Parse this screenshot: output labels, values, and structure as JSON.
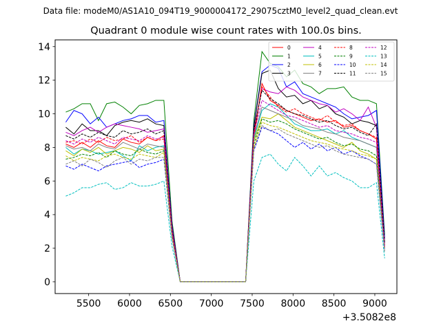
{
  "header": {
    "data_file": "Data file: modeM0/AS1A10_094T19_9000004172_29075cztM0_level2_quad_clean.evt"
  },
  "chart_data": {
    "type": "line",
    "title": "Quadrant 0 module wise count rates with 100.0s bins.",
    "xlabel": "",
    "ylabel": "",
    "x_offset_label": "+3.5082e8",
    "xlim": [
      5090,
      9270
    ],
    "ylim": [
      -0.7,
      14.4
    ],
    "x_ticks": [
      5500,
      6000,
      6500,
      7000,
      7500,
      8000,
      8500,
      9000
    ],
    "y_ticks": [
      0,
      2,
      4,
      6,
      8,
      10,
      12,
      14
    ],
    "x": [
      5220,
      5320,
      5420,
      5520,
      5620,
      5720,
      5820,
      5920,
      6020,
      6120,
      6220,
      6320,
      6420,
      6520,
      6620,
      6720,
      6820,
      6920,
      7020,
      7120,
      7220,
      7320,
      7420,
      7520,
      7620,
      7720,
      7820,
      7920,
      8020,
      8120,
      8220,
      8320,
      8420,
      8520,
      8620,
      8720,
      8820,
      8920,
      9020,
      9120
    ],
    "legend_location": "upper right",
    "series": [
      {
        "name": "0",
        "color": "#ff0000",
        "dash": "solid",
        "values": [
          8.2,
          8.0,
          8.3,
          8.0,
          8.4,
          8.1,
          8.0,
          8.5,
          8.3,
          8.2,
          8.6,
          8.4,
          8.7,
          3.0,
          0,
          0,
          0,
          0,
          0,
          0,
          0,
          0,
          0,
          8.5,
          11.8,
          10.8,
          10.5,
          10.2,
          10.0,
          9.8,
          9.6,
          9.7,
          9.5,
          9.6,
          9.2,
          9.3,
          9.0,
          8.8,
          8.5,
          2.0
        ]
      },
      {
        "name": "1",
        "color": "#008000",
        "dash": "solid",
        "values": [
          10.1,
          10.3,
          10.6,
          10.6,
          9.6,
          10.6,
          10.7,
          10.4,
          10.0,
          10.5,
          10.6,
          10.8,
          10.8,
          3.6,
          0,
          0,
          0,
          0,
          0,
          0,
          0,
          0,
          0,
          9.6,
          13.7,
          13.0,
          12.8,
          12.2,
          12.6,
          11.8,
          11.6,
          11.2,
          11.5,
          11.5,
          11.6,
          11.0,
          10.8,
          10.8,
          10.6,
          2.8
        ]
      },
      {
        "name": "2",
        "color": "#0000ff",
        "dash": "solid",
        "values": [
          9.5,
          10.2,
          10.0,
          9.4,
          9.8,
          9.2,
          9.4,
          9.6,
          9.7,
          9.9,
          9.9,
          9.5,
          9.6,
          3.4,
          0,
          0,
          0,
          0,
          0,
          0,
          0,
          0,
          0,
          9.3,
          12.5,
          12.9,
          12.7,
          11.6,
          11.9,
          11.2,
          11.0,
          10.8,
          10.6,
          10.4,
          10.0,
          9.7,
          9.8,
          9.9,
          10.2,
          2.6
        ]
      },
      {
        "name": "3",
        "color": "#000000",
        "dash": "solid",
        "values": [
          9.2,
          8.8,
          9.4,
          9.0,
          9.0,
          8.7,
          9.3,
          9.5,
          9.6,
          9.5,
          9.7,
          9.4,
          9.3,
          3.3,
          0,
          0,
          0,
          0,
          0,
          0,
          0,
          0,
          0,
          9.2,
          12.4,
          12.6,
          11.5,
          11.0,
          11.1,
          10.6,
          10.8,
          10.3,
          10.5,
          10.0,
          9.8,
          9.4,
          9.6,
          9.5,
          9.3,
          2.4
        ]
      },
      {
        "name": "4",
        "color": "#bf00bf",
        "dash": "solid",
        "values": [
          8.9,
          8.7,
          9.0,
          9.2,
          8.9,
          9.2,
          9.4,
          9.3,
          9.2,
          9.1,
          8.9,
          9.0,
          9.1,
          3.2,
          0,
          0,
          0,
          0,
          0,
          0,
          0,
          0,
          0,
          9.0,
          11.5,
          11.3,
          11.2,
          11.6,
          11.4,
          11.0,
          10.8,
          10.6,
          10.5,
          10.1,
          10.3,
          10.0,
          9.6,
          10.4,
          9.2,
          2.3
        ]
      },
      {
        "name": "5",
        "color": "#00bfbf",
        "dash": "solid",
        "values": [
          8.0,
          7.6,
          7.9,
          7.8,
          7.6,
          7.7,
          7.8,
          7.5,
          7.2,
          8.1,
          7.8,
          8.0,
          8.1,
          2.9,
          0,
          0,
          0,
          0,
          0,
          0,
          0,
          0,
          0,
          8.5,
          10.2,
          10.6,
          10.4,
          9.9,
          9.4,
          9.2,
          9.0,
          9.0,
          9.1,
          8.8,
          9.0,
          8.6,
          8.4,
          8.2,
          8.0,
          2.2
        ]
      },
      {
        "name": "6",
        "color": "#bfbf00",
        "dash": "solid",
        "values": [
          7.8,
          7.5,
          7.9,
          7.7,
          8.0,
          7.6,
          7.8,
          8.0,
          7.9,
          7.7,
          8.1,
          7.8,
          7.9,
          2.8,
          0,
          0,
          0,
          0,
          0,
          0,
          0,
          0,
          0,
          8.4,
          9.8,
          9.7,
          10.0,
          9.6,
          9.2,
          9.0,
          8.8,
          8.6,
          8.4,
          8.2,
          8.0,
          8.3,
          7.8,
          7.6,
          7.3,
          2.1
        ]
      },
      {
        "name": "7",
        "color": "#808080",
        "dash": "solid",
        "values": [
          8.1,
          7.9,
          8.0,
          7.8,
          8.2,
          8.0,
          7.9,
          8.3,
          8.1,
          7.9,
          8.2,
          8.1,
          8.0,
          2.9,
          0,
          0,
          0,
          0,
          0,
          0,
          0,
          0,
          0,
          8.6,
          10.4,
          10.2,
          10.0,
          9.8,
          9.6,
          9.3,
          9.2,
          9.1,
          8.9,
          8.8,
          8.6,
          8.5,
          8.4,
          8.2,
          8.0,
          2.2
        ]
      },
      {
        "name": "8",
        "color": "#ff0000",
        "dash": "dashed",
        "values": [
          8.3,
          8.4,
          8.2,
          8.5,
          8.3,
          8.6,
          8.4,
          8.5,
          8.7,
          8.3,
          8.6,
          8.4,
          8.5,
          3.0,
          0,
          0,
          0,
          0,
          0,
          0,
          0,
          0,
          0,
          8.8,
          11.6,
          11.0,
          10.4,
          10.1,
          10.3,
          10.0,
          9.8,
          9.6,
          9.9,
          9.5,
          9.3,
          9.4,
          9.0,
          8.8,
          8.6,
          2.1
        ]
      },
      {
        "name": "9",
        "color": "#008000",
        "dash": "dashed",
        "values": [
          7.3,
          7.4,
          7.6,
          7.5,
          7.7,
          7.4,
          7.8,
          7.6,
          7.5,
          7.9,
          7.7,
          7.6,
          7.8,
          2.7,
          0,
          0,
          0,
          0,
          0,
          0,
          0,
          0,
          0,
          8.2,
          9.7,
          9.5,
          9.6,
          9.4,
          9.1,
          8.9,
          8.7,
          8.5,
          8.6,
          8.3,
          8.1,
          8.2,
          7.9,
          7.8,
          7.5,
          2.0
        ]
      },
      {
        "name": "10",
        "color": "#0000ff",
        "dash": "dashed",
        "values": [
          6.9,
          6.7,
          7.0,
          6.8,
          6.6,
          6.9,
          7.0,
          7.1,
          7.2,
          6.8,
          7.0,
          7.1,
          7.3,
          2.6,
          0,
          0,
          0,
          0,
          0,
          0,
          0,
          0,
          0,
          7.8,
          9.2,
          9.0,
          8.8,
          8.4,
          8.0,
          8.3,
          7.9,
          8.2,
          7.8,
          8.0,
          7.6,
          7.8,
          7.5,
          7.3,
          7.0,
          1.9
        ]
      },
      {
        "name": "11",
        "color": "#000000",
        "dash": "dashed",
        "values": [
          8.7,
          8.5,
          8.8,
          8.6,
          8.9,
          8.7,
          8.6,
          9.0,
          8.8,
          8.9,
          9.1,
          8.8,
          9.0,
          3.1,
          0,
          0,
          0,
          0,
          0,
          0,
          0,
          0,
          0,
          9.0,
          11.4,
          10.9,
          10.6,
          10.2,
          10.0,
          9.9,
          9.7,
          9.5,
          9.6,
          9.3,
          9.1,
          9.2,
          8.9,
          8.7,
          9.4,
          2.3
        ]
      },
      {
        "name": "12",
        "color": "#bf00bf",
        "dash": "dashed",
        "values": [
          8.4,
          8.2,
          8.5,
          8.3,
          8.6,
          8.4,
          8.2,
          8.6,
          8.5,
          8.4,
          8.7,
          8.5,
          8.6,
          3.0,
          0,
          0,
          0,
          0,
          0,
          0,
          0,
          0,
          0,
          8.8,
          10.8,
          10.5,
          10.2,
          9.9,
          9.8,
          9.6,
          9.4,
          9.2,
          9.3,
          9.0,
          8.9,
          8.8,
          8.6,
          8.5,
          8.3,
          2.1
        ]
      },
      {
        "name": "13",
        "color": "#00bfbf",
        "dash": "dashed",
        "values": [
          5.1,
          5.3,
          5.6,
          5.6,
          5.8,
          5.9,
          5.5,
          5.6,
          5.9,
          5.7,
          5.7,
          5.8,
          6.0,
          2.1,
          0,
          0,
          0,
          0,
          0,
          0,
          0,
          0,
          0,
          6.0,
          7.4,
          7.6,
          7.0,
          6.6,
          7.4,
          6.9,
          6.3,
          6.9,
          6.3,
          6.5,
          6.2,
          6.0,
          5.6,
          5.6,
          5.9,
          1.4
        ]
      },
      {
        "name": "14",
        "color": "#bfbf00",
        "dash": "dashed",
        "values": [
          7.5,
          7.2,
          7.4,
          7.3,
          7.2,
          7.5,
          7.6,
          7.4,
          7.3,
          7.6,
          7.5,
          7.4,
          7.7,
          2.7,
          0,
          0,
          0,
          0,
          0,
          0,
          0,
          0,
          0,
          8.0,
          9.5,
          9.3,
          9.2,
          9.0,
          8.8,
          8.6,
          8.4,
          8.3,
          8.2,
          8.0,
          7.9,
          7.8,
          7.6,
          7.5,
          7.3,
          1.9
        ]
      },
      {
        "name": "15",
        "color": "#808080",
        "dash": "dashed",
        "values": [
          7.0,
          7.2,
          6.9,
          7.3,
          7.1,
          6.8,
          7.2,
          7.4,
          7.0,
          7.3,
          7.2,
          7.4,
          7.4,
          2.6,
          0,
          0,
          0,
          0,
          0,
          0,
          0,
          0,
          0,
          7.9,
          9.3,
          9.0,
          9.1,
          8.8,
          8.6,
          8.4,
          8.2,
          8.0,
          8.1,
          7.8,
          7.6,
          7.5,
          7.4,
          7.3,
          7.0,
          1.8
        ]
      }
    ]
  }
}
